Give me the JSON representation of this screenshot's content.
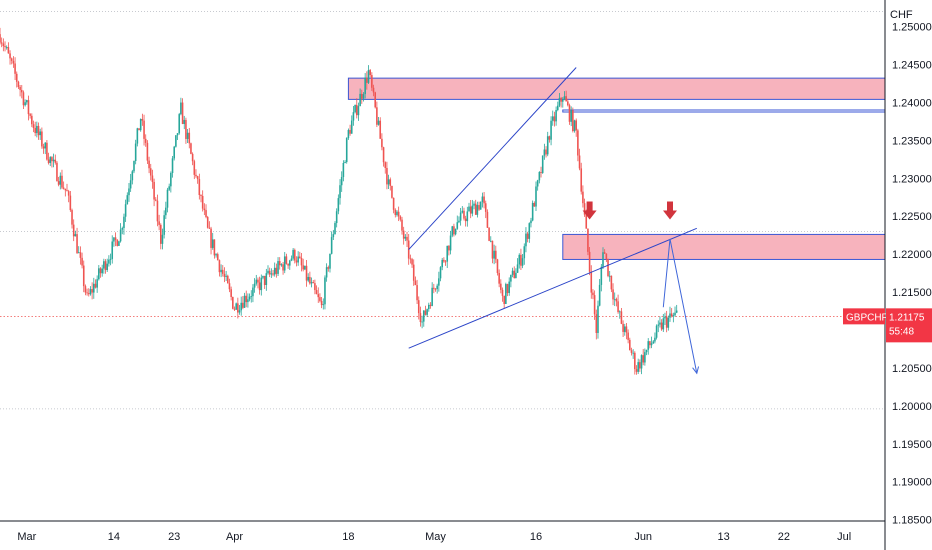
{
  "symbol": "GBPCHF",
  "currency": "CHF",
  "colors": {
    "up": "#26a69a",
    "down": "#ef5350",
    "zone_fill": "#f7b3bd",
    "zone_stroke": "#3a56d4",
    "trendline": "#2c45c8",
    "projection": "#3f66d9",
    "marker": "#d1343d",
    "price_line": "#ef5350",
    "badge_bg": "#f23645",
    "axis_text": "#131722"
  },
  "price_badge": {
    "symbol": "GBPCHF",
    "price": "1.21175",
    "countdown": "55:48"
  },
  "chart_data": {
    "type": "candlestick",
    "title": "",
    "ylabel": "CHF",
    "ylim": [
      1.181,
      1.2535
    ],
    "xlim_days": [
      "Feb 25",
      "Jul 13"
    ],
    "x_ticks": [
      "Mar",
      "14",
      "23",
      "Apr",
      "18",
      "May",
      "16",
      "Jun",
      "13",
      "22",
      "Jul"
    ],
    "y_ticks": [
      "1.25000",
      "1.24500",
      "1.24000",
      "1.23500",
      "1.23000",
      "1.22500",
      "1.22000",
      "1.21500",
      "1.21000",
      "1.20500",
      "1.20000",
      "1.19500",
      "1.19000",
      "1.18500"
    ],
    "key_points": [
      {
        "x": "Feb 25",
        "close": 1.249
      },
      {
        "x": "Mar 2",
        "close": 1.237
      },
      {
        "x": "Mar 7",
        "close": 1.228
      },
      {
        "x": "Mar 10",
        "close": 1.214
      },
      {
        "x": "Mar 15",
        "close": 1.223
      },
      {
        "x": "Mar 18",
        "close": 1.238
      },
      {
        "x": "Mar 21",
        "close": 1.222
      },
      {
        "x": "Mar 24",
        "close": 1.239
      },
      {
        "x": "Mar 28",
        "close": 1.223
      },
      {
        "x": "Apr 1",
        "close": 1.213
      },
      {
        "x": "Apr 6",
        "close": 1.217
      },
      {
        "x": "Apr 10",
        "close": 1.22
      },
      {
        "x": "Apr 14",
        "close": 1.213
      },
      {
        "x": "Apr 18",
        "close": 1.236
      },
      {
        "x": "Apr 21",
        "close": 1.244
      },
      {
        "x": "Apr 24",
        "close": 1.229
      },
      {
        "x": "Apr 27",
        "close": 1.22
      },
      {
        "x": "Apr 29",
        "close": 1.211
      },
      {
        "x": "May 4",
        "close": 1.224
      },
      {
        "x": "May 8",
        "close": 1.227
      },
      {
        "x": "May 11",
        "close": 1.214
      },
      {
        "x": "May 14",
        "close": 1.22
      },
      {
        "x": "May 18",
        "close": 1.236
      },
      {
        "x": "May 20",
        "close": 1.241
      },
      {
        "x": "May 22",
        "close": 1.236
      },
      {
        "x": "May 24",
        "close": 1.218
      },
      {
        "x": "May 25",
        "close": 1.21
      },
      {
        "x": "May 26",
        "close": 1.221
      },
      {
        "x": "May 28",
        "close": 1.213
      },
      {
        "x": "May 31",
        "close": 1.205
      },
      {
        "x": "Jun 2",
        "close": 1.208
      },
      {
        "x": "Jun 4",
        "close": 1.211
      },
      {
        "x": "Jun 6",
        "close": 1.212
      }
    ],
    "horizontal_lines": [
      1.252,
      1.223,
      1.2118,
      1.1996
    ],
    "zones": [
      {
        "name": "upper-supply",
        "y_top": 1.2432,
        "y_bottom": 1.2404,
        "x_start": "Apr 18",
        "x_end": "Jul 13"
      },
      {
        "name": "lower-zone",
        "y_top": 1.239,
        "y_bottom": 1.2388,
        "x_start": "May 20",
        "x_end": "Jul 13"
      },
      {
        "name": "mid-supply",
        "y_top": 1.2226,
        "y_bottom": 1.2193,
        "x_start": "May 20",
        "x_end": "Jul 13"
      }
    ],
    "trendlines": [
      {
        "from": [
          "Apr 27",
          1.2206
        ],
        "to": [
          "May 22",
          1.2446
        ]
      },
      {
        "from": [
          "Apr 27",
          1.2076
        ],
        "to": [
          "Jun 9",
          1.2234
        ]
      }
    ],
    "projection": [
      [
        "Jun 4",
        1.213
      ],
      [
        "Jun 5",
        1.222
      ],
      [
        "Jun 9",
        1.2043
      ]
    ],
    "markers": [
      {
        "x": "May 24",
        "y": 1.2243
      },
      {
        "x": "Jun 5",
        "y": 1.2243
      }
    ]
  }
}
